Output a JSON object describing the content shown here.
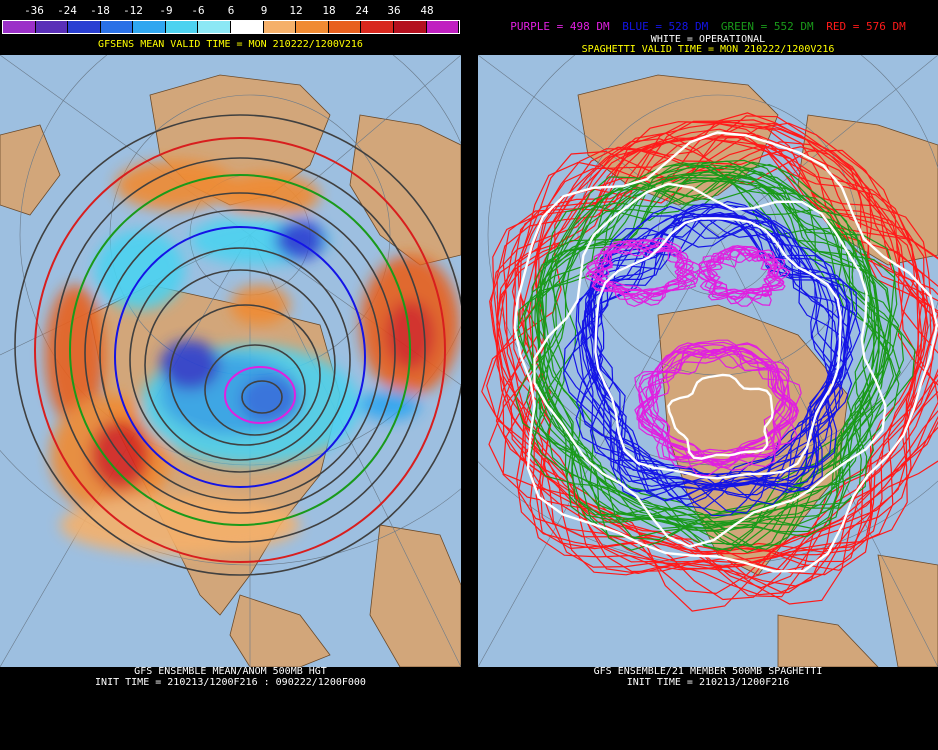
{
  "left": {
    "legend_values": [
      "-36",
      "-24",
      "-18",
      "-12",
      "-9",
      "-6",
      "6",
      "9",
      "12",
      "18",
      "24",
      "36",
      "48"
    ],
    "legend_colors": [
      "#9b30c8",
      "#5a2fb8",
      "#2a3fd2",
      "#2a70e6",
      "#2fa6f0",
      "#4cd2f0",
      "#8ce8f5",
      "#ffffff",
      "#f5b06a",
      "#f08a32",
      "#e8601e",
      "#d8281e",
      "#b4101e",
      "#c020c0"
    ],
    "title": "GFSENS MEAN VALID TIME = MON 210222/1200V216",
    "footer_line1": "GFS ENSEMBLE MEAN/ANOM 500MB HGT",
    "footer_line2": "INIT TIME = 210213/1200F216 : 090222/1200F000"
  },
  "right": {
    "key_purple": "PURPLE = 498 DM",
    "key_blue": "BLUE = 528 DM",
    "key_green": "GREEN = 552 DM",
    "key_red": "RED = 576 DM",
    "key_white": "WHITE = OPERATIONAL",
    "title": "SPAGHETTI VALID TIME = MON 210222/1200V216",
    "footer_line1": "GFS ENSEMBLE/21 MEMBER 500MB SPAGHETTI",
    "footer_line2": "INIT TIME = 210213/1200F216"
  },
  "colors": {
    "ocean": "#9dbfe0",
    "land": "#d2a67a",
    "purple": "#e020e0",
    "blue": "#1414e6",
    "green": "#1a9a1a",
    "red": "#ff1a1a",
    "white": "#ffffff",
    "title_yellow": "#ffff00"
  }
}
